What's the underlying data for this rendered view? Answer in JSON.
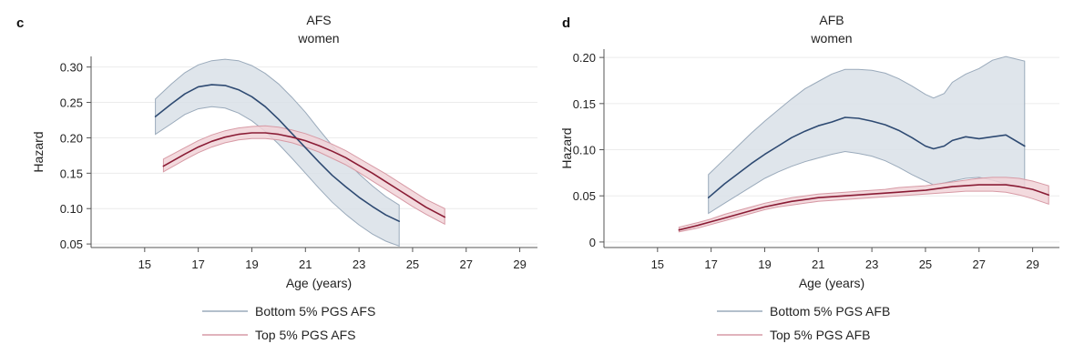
{
  "chart_data": [
    {
      "panel_label": "c",
      "type": "line",
      "title": "AFS",
      "subtitle": "women",
      "xlabel": "Age (years)",
      "ylabel": "Hazard",
      "xlim": [
        13,
        30
      ],
      "ylim": [
        0.045,
        0.315
      ],
      "xticks": [
        15,
        17,
        19,
        21,
        23,
        25,
        27,
        29
      ],
      "yticks": [
        0.05,
        0.1,
        0.15,
        0.2,
        0.25,
        0.3
      ],
      "ytick_labels": [
        "0.05",
        "0.10",
        "0.15",
        "0.20",
        "0.25",
        "0.30"
      ],
      "grid": "horizontal",
      "legend_position": "bottom",
      "series": [
        {
          "name": "Bottom 5% PGS AFS",
          "color": "#2e4a72",
          "band_color": "#d9e0e8",
          "band_edge_color": "#9aaabb",
          "x": [
            15.4,
            16.0,
            16.5,
            17.0,
            17.5,
            18.0,
            18.5,
            19.0,
            19.5,
            20.0,
            20.5,
            21.0,
            21.5,
            22.0,
            22.5,
            23.0,
            23.5,
            24.0,
            24.5
          ],
          "y": [
            0.23,
            0.248,
            0.262,
            0.272,
            0.275,
            0.274,
            0.268,
            0.258,
            0.244,
            0.226,
            0.206,
            0.186,
            0.166,
            0.147,
            0.131,
            0.116,
            0.103,
            0.091,
            0.082
          ],
          "lower": [
            0.205,
            0.22,
            0.233,
            0.241,
            0.244,
            0.242,
            0.235,
            0.224,
            0.209,
            0.191,
            0.171,
            0.15,
            0.129,
            0.109,
            0.092,
            0.077,
            0.064,
            0.054,
            0.047
          ],
          "upper": [
            0.255,
            0.276,
            0.292,
            0.303,
            0.309,
            0.311,
            0.309,
            0.302,
            0.291,
            0.276,
            0.257,
            0.236,
            0.212,
            0.189,
            0.168,
            0.149,
            0.132,
            0.117,
            0.105
          ]
        },
        {
          "name": "Top 5% PGS AFS",
          "color": "#8a1c35",
          "band_color": "#f1d3d8",
          "band_edge_color": "#d79aa5",
          "x": [
            15.7,
            16.5,
            17.0,
            17.5,
            18.0,
            18.5,
            19.0,
            19.5,
            20.0,
            20.5,
            21.0,
            21.5,
            22.0,
            22.5,
            23.0,
            23.5,
            24.0,
            24.5,
            25.0,
            25.5,
            26.2
          ],
          "y": [
            0.16,
            0.177,
            0.187,
            0.195,
            0.201,
            0.205,
            0.207,
            0.207,
            0.205,
            0.201,
            0.196,
            0.189,
            0.181,
            0.172,
            0.161,
            0.15,
            0.138,
            0.126,
            0.114,
            0.102,
            0.088
          ],
          "lower": [
            0.152,
            0.169,
            0.179,
            0.187,
            0.193,
            0.197,
            0.199,
            0.199,
            0.197,
            0.193,
            0.187,
            0.18,
            0.171,
            0.162,
            0.151,
            0.139,
            0.127,
            0.115,
            0.103,
            0.092,
            0.078
          ],
          "upper": [
            0.17,
            0.186,
            0.196,
            0.204,
            0.21,
            0.214,
            0.216,
            0.217,
            0.215,
            0.211,
            0.206,
            0.199,
            0.191,
            0.182,
            0.171,
            0.16,
            0.149,
            0.137,
            0.125,
            0.113,
            0.1
          ]
        }
      ]
    },
    {
      "panel_label": "d",
      "type": "line",
      "title": "AFB",
      "subtitle": "women",
      "xlabel": "Age (years)",
      "ylabel": "Hazard",
      "xlim": [
        13,
        30
      ],
      "ylim": [
        -0.006,
        0.209
      ],
      "xticks": [
        15,
        17,
        19,
        21,
        23,
        25,
        27,
        29
      ],
      "yticks": [
        0,
        0.05,
        0.1,
        0.15,
        0.2
      ],
      "ytick_labels": [
        "0",
        "0.05",
        "0.10",
        "0.15",
        "0.20"
      ],
      "grid": "horizontal",
      "legend_position": "bottom",
      "series": [
        {
          "name": "Bottom 5% PGS AFB",
          "color": "#2e4a72",
          "band_color": "#d9e0e8",
          "band_edge_color": "#9aaabb",
          "x": [
            16.9,
            17.5,
            18.0,
            18.5,
            19.0,
            19.5,
            20.0,
            20.5,
            21.0,
            21.5,
            22.0,
            22.5,
            23.0,
            23.5,
            24.0,
            24.5,
            25.0,
            25.3,
            25.7,
            26.0,
            26.5,
            27.0,
            27.5,
            28.0,
            28.7
          ],
          "y": [
            0.048,
            0.063,
            0.074,
            0.085,
            0.095,
            0.104,
            0.113,
            0.12,
            0.126,
            0.13,
            0.135,
            0.134,
            0.131,
            0.127,
            0.121,
            0.113,
            0.104,
            0.101,
            0.104,
            0.11,
            0.114,
            0.112,
            0.114,
            0.116,
            0.104
          ],
          "lower": [
            0.031,
            0.042,
            0.051,
            0.06,
            0.069,
            0.076,
            0.082,
            0.087,
            0.091,
            0.095,
            0.098,
            0.096,
            0.093,
            0.088,
            0.081,
            0.073,
            0.066,
            0.062,
            0.064,
            0.066,
            0.069,
            0.07,
            0.067,
            0.063,
            0.058
          ],
          "upper": [
            0.073,
            0.09,
            0.104,
            0.118,
            0.131,
            0.143,
            0.155,
            0.166,
            0.174,
            0.182,
            0.187,
            0.187,
            0.186,
            0.183,
            0.177,
            0.169,
            0.16,
            0.156,
            0.161,
            0.173,
            0.182,
            0.188,
            0.197,
            0.201,
            0.196
          ]
        },
        {
          "name": "Top 5% PGS AFB",
          "color": "#8a1c35",
          "band_color": "#f1d3d8",
          "band_edge_color": "#d79aa5",
          "x": [
            15.8,
            16.5,
            17.0,
            17.5,
            18.0,
            18.5,
            19.0,
            19.5,
            20.0,
            20.5,
            21.0,
            21.5,
            22.0,
            22.5,
            23.0,
            23.5,
            24.0,
            24.5,
            25.0,
            25.5,
            26.0,
            26.5,
            27.0,
            27.5,
            28.0,
            28.5,
            29.0,
            29.6
          ],
          "y": [
            0.013,
            0.018,
            0.022,
            0.026,
            0.03,
            0.034,
            0.038,
            0.041,
            0.044,
            0.046,
            0.048,
            0.049,
            0.05,
            0.051,
            0.052,
            0.053,
            0.054,
            0.055,
            0.056,
            0.058,
            0.06,
            0.061,
            0.062,
            0.062,
            0.062,
            0.06,
            0.057,
            0.051
          ],
          "lower": [
            0.011,
            0.015,
            0.019,
            0.023,
            0.027,
            0.031,
            0.035,
            0.038,
            0.04,
            0.042,
            0.044,
            0.045,
            0.046,
            0.047,
            0.048,
            0.049,
            0.05,
            0.051,
            0.052,
            0.053,
            0.054,
            0.055,
            0.055,
            0.055,
            0.054,
            0.051,
            0.047,
            0.041
          ],
          "upper": [
            0.016,
            0.021,
            0.025,
            0.03,
            0.034,
            0.038,
            0.042,
            0.045,
            0.048,
            0.05,
            0.052,
            0.053,
            0.054,
            0.055,
            0.056,
            0.057,
            0.059,
            0.06,
            0.061,
            0.063,
            0.065,
            0.067,
            0.069,
            0.07,
            0.07,
            0.069,
            0.066,
            0.061
          ]
        }
      ]
    }
  ]
}
